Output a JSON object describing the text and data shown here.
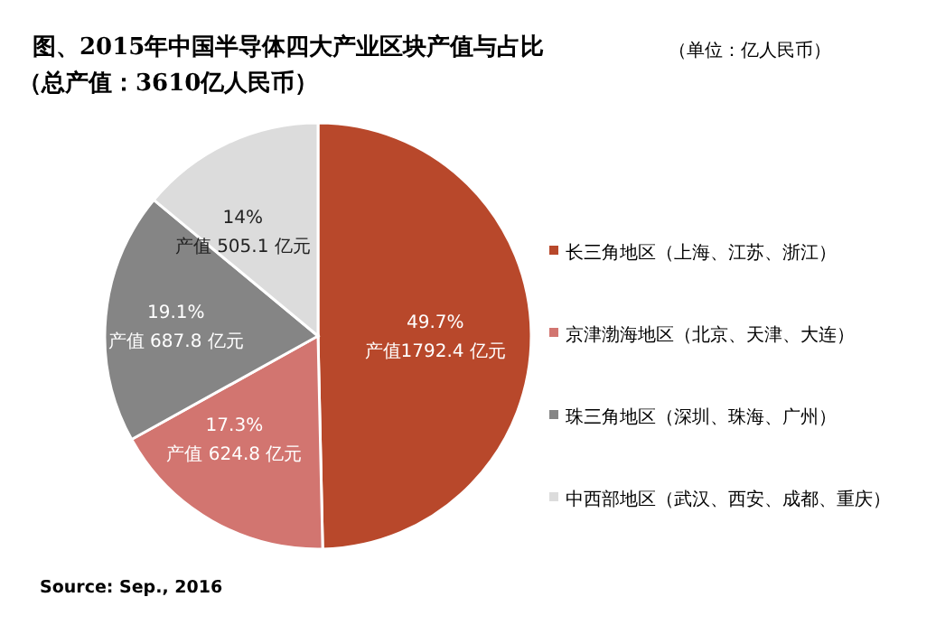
{
  "chart_data": {
    "type": "pie",
    "title": "图、2015年中国半导体四大产业区块产值与占比",
    "subtitle": "（总产值：3610亿人民币）",
    "categories": [
      "长三角地区（上海、江苏、浙江）",
      "京津渤海地区（北京、天津、大连）",
      "珠三角地区（深圳、珠海、广州）",
      "中西部地区（武汉、西安、成都、重庆）"
    ],
    "values": [
      49.7,
      17.3,
      19.1,
      14
    ],
    "colors": [
      "#b8482b",
      "#d27570",
      "#858585",
      "#dcdcdc"
    ],
    "value_labels": [
      "49.7%",
      "17.3%",
      "19.1%",
      "14%"
    ],
    "legend": "right",
    "annotations": [
      "（单位：亿人民币）",
      "产值1792.4 亿元",
      "产值 624.8 亿元",
      "产值 687.8 亿元",
      "产值 505.1 亿元",
      "Source: Sep., 2016"
    ]
  }
}
